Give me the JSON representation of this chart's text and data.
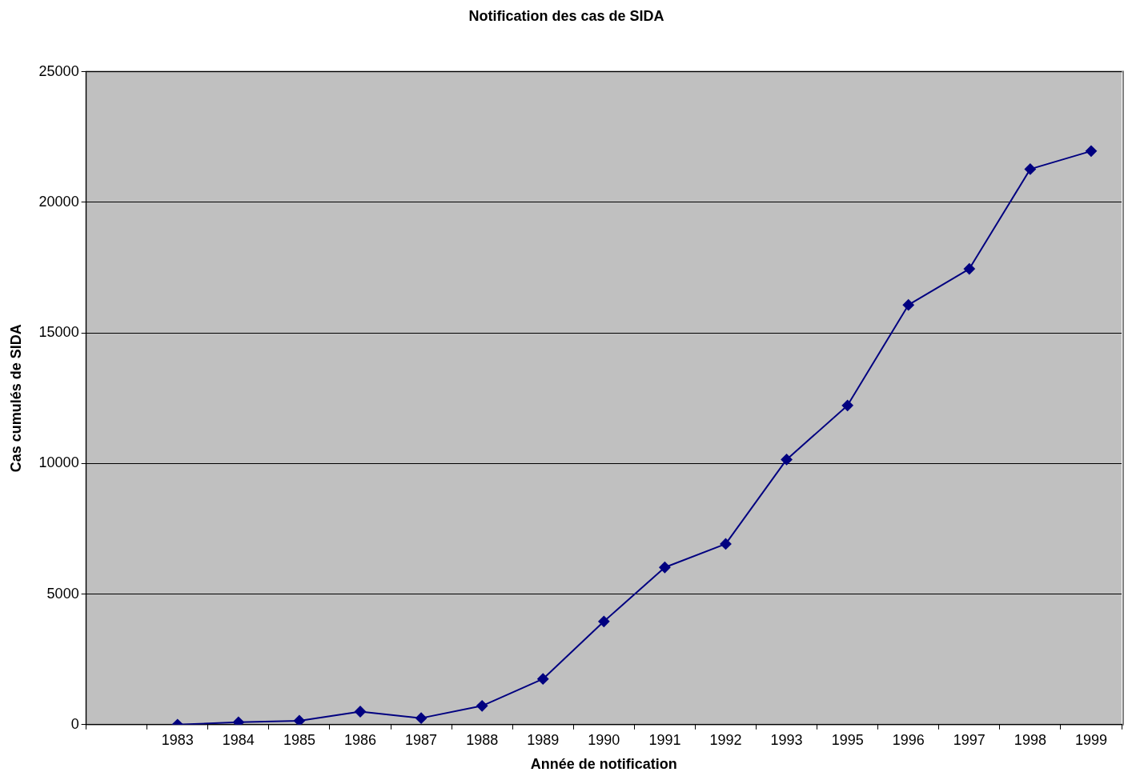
{
  "chart_data": {
    "type": "line",
    "title": "Notification des cas de SIDA",
    "xlabel": "Année de notification",
    "ylabel": "Cas cumulés de SIDA",
    "categories": [
      null,
      "1983",
      "1984",
      "1985",
      "1986",
      "1987",
      "1988",
      "1989",
      "1990",
      "1991",
      "1992",
      "1993",
      "1995",
      "1996",
      "1997",
      "1998",
      "1999"
    ],
    "values": [
      null,
      0,
      90,
      150,
      500,
      250,
      720,
      1750,
      3950,
      6020,
      6920,
      10150,
      12220,
      16070,
      17450,
      21270,
      21960
    ],
    "color": "#000080",
    "marker": "diamond",
    "line_style": "solid",
    "ylim": [
      0,
      25000
    ],
    "yticks": [
      0,
      5000,
      10000,
      15000,
      20000,
      25000
    ],
    "grid": "y",
    "legend": false
  }
}
